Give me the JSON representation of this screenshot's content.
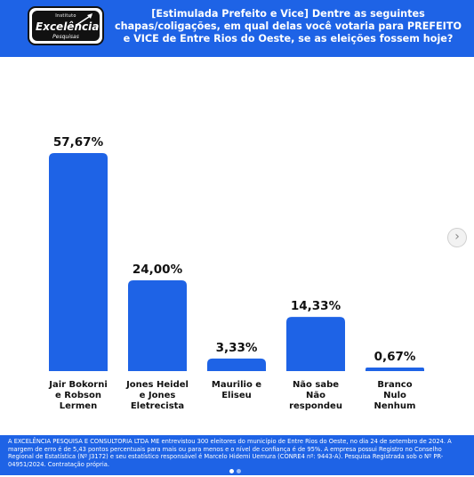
{
  "header": {
    "logo": {
      "top": "Instituto",
      "mid": "Excelência",
      "bot": "Pesquisas"
    },
    "title": "[Estimulada Prefeito e Vice] Dentre as seguintes chapas/coligações, em qual delas você votaria para PREFEITO e VICE de Entre Rios do Oeste, se as eleições fossem hoje?"
  },
  "chart_data": {
    "type": "bar",
    "categories": [
      [
        "Jair Bokorni",
        "e Robson",
        "Lermen"
      ],
      [
        "Jones Heidel",
        "e Jones",
        "Eletrecista"
      ],
      [
        "Maurilio e",
        "Eliseu"
      ],
      [
        "Não sabe",
        "Não",
        "respondeu"
      ],
      [
        "Branco",
        "Nulo",
        "Nenhum"
      ]
    ],
    "values": [
      57.67,
      24.0,
      3.33,
      14.33,
      0.67
    ],
    "value_labels": [
      "57,67%",
      "24,00%",
      "3,33%",
      "14,33%",
      "0,67%"
    ],
    "ylim": [
      0,
      57.67
    ],
    "grid": false,
    "bar_color": "#1e63e6"
  },
  "footer": {
    "text": "A EXCELÊNCIA PESQUISA E CONSULTORIA LTDA ME entrevistou 300 eleitores do município de Entre Rios do Oeste, no dia 24 de setembro de 2024. A margem de erro é de 5,43 pontos percentuais para mais ou para menos e o nível de confiança é de 95%. A empresa possui Registro no Conselho Regional de Estatística (Nº J3172) e seu estatístico responsável é Marcelo Hidemi Uemura (CONRE4 nº: 9443-A). Pesquisa Registrada sob o Nº PR-04951/2024. Contratação própria."
  },
  "controls": {
    "next_icon": "chevron-right-icon",
    "next_glyph": "›"
  },
  "carousel": {
    "dot_colors": [
      "#ffffff",
      "#9fbef5"
    ]
  }
}
